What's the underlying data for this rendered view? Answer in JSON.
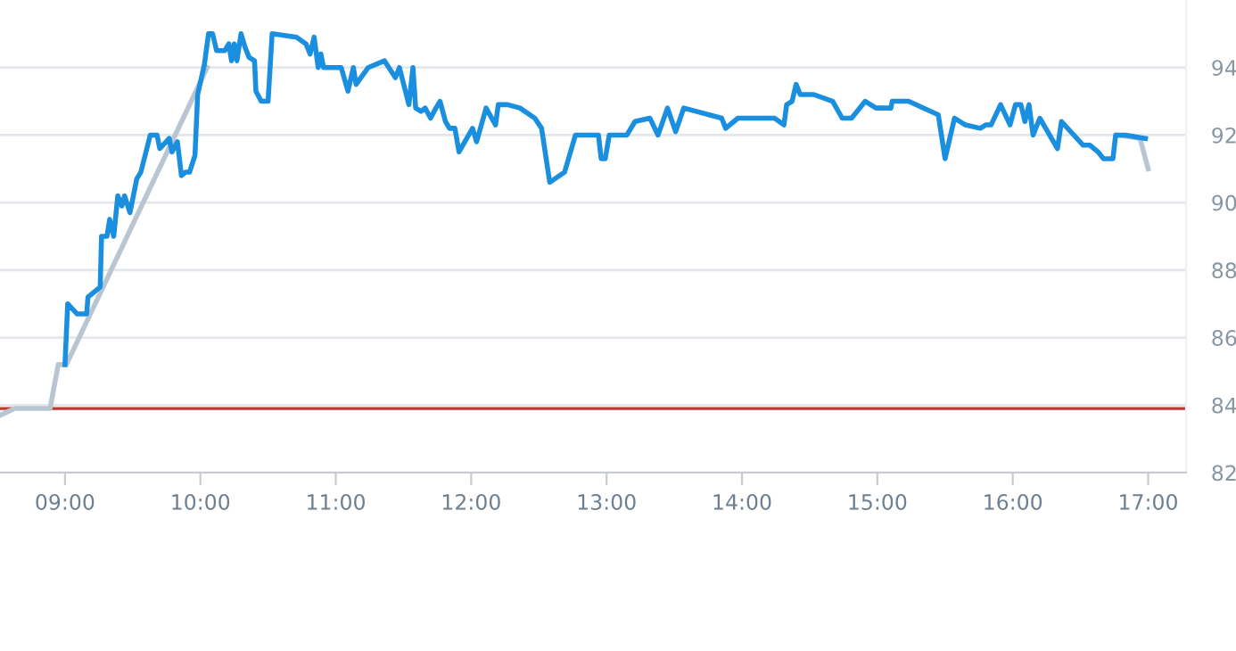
{
  "chart_data": {
    "type": "line",
    "series": [
      {
        "color": "#b9c6d2",
        "x": [
          8.52,
          8.63,
          8.89,
          8.95,
          9.01,
          10.05
        ],
        "values": [
          83.7,
          83.9,
          83.9,
          85.2,
          85.2,
          94.0
        ]
      },
      {
        "color": "#b9c6d2",
        "x": [
          16.77,
          16.94,
          17.0
        ],
        "values": [
          92.0,
          91.9,
          91.0
        ]
      },
      {
        "color": "#1a8fe0",
        "x": [
          9.0,
          9.02,
          9.09,
          9.16,
          9.17,
          9.26,
          9.27,
          9.31,
          9.33,
          9.36,
          9.39,
          9.42,
          9.44,
          9.48,
          9.53,
          9.56,
          9.63,
          9.68,
          9.7,
          9.77,
          9.79,
          9.83,
          9.86,
          9.89,
          9.92,
          9.96,
          9.98,
          10.03,
          10.06,
          10.09,
          10.12,
          10.18,
          10.21,
          10.23,
          10.25,
          10.27,
          10.3,
          10.33,
          10.36,
          10.4,
          10.41,
          10.45,
          10.5,
          10.53,
          10.71,
          10.78,
          10.81,
          10.84,
          10.87,
          10.89,
          10.91,
          11.04,
          11.09,
          11.13,
          11.15,
          11.24,
          11.36,
          11.44,
          11.47,
          11.54,
          11.57,
          11.59,
          11.63,
          11.66,
          11.7,
          11.74,
          11.77,
          11.81,
          11.84,
          11.88,
          11.91,
          12.01,
          12.04,
          12.11,
          12.18,
          12.2,
          12.27,
          12.36,
          12.47,
          12.52,
          12.58,
          12.69,
          12.77,
          12.94,
          12.96,
          12.99,
          13.02,
          13.15,
          13.21,
          13.32,
          13.38,
          13.45,
          13.51,
          13.57,
          13.85,
          13.88,
          13.97,
          14.24,
          14.31,
          14.33,
          14.37,
          14.4,
          14.43,
          14.53,
          14.67,
          14.74,
          14.81,
          14.91,
          14.99,
          15.1,
          15.11,
          15.23,
          15.45,
          15.5,
          15.57,
          15.65,
          15.76,
          15.8,
          15.84,
          15.91,
          15.98,
          16.02,
          16.06,
          16.09,
          16.12,
          16.15,
          16.2,
          16.33,
          16.36,
          16.52,
          16.57,
          16.63,
          16.67,
          16.74,
          16.76,
          16.83,
          16.98
        ],
        "values": [
          85.2,
          87.0,
          86.7,
          86.7,
          87.2,
          87.5,
          89.0,
          89.0,
          89.5,
          89.0,
          90.2,
          89.9,
          90.2,
          89.7,
          90.7,
          90.9,
          92.0,
          92.0,
          91.6,
          91.9,
          91.5,
          91.8,
          90.8,
          90.9,
          90.9,
          91.4,
          93.2,
          94.1,
          95.0,
          95.0,
          94.5,
          94.5,
          94.7,
          94.2,
          94.7,
          94.2,
          95.0,
          94.6,
          94.3,
          94.2,
          93.3,
          93.0,
          93.0,
          95.0,
          94.9,
          94.7,
          94.4,
          94.9,
          94.0,
          94.4,
          94.0,
          94.0,
          93.3,
          94.0,
          93.5,
          94.0,
          94.2,
          93.7,
          94.0,
          92.9,
          94.0,
          92.8,
          92.7,
          92.8,
          92.5,
          92.8,
          93.0,
          92.4,
          92.2,
          92.2,
          91.5,
          92.2,
          91.8,
          92.8,
          92.3,
          92.9,
          92.9,
          92.8,
          92.5,
          92.2,
          90.6,
          90.9,
          92.0,
          92.0,
          91.3,
          91.3,
          92.0,
          92.0,
          92.4,
          92.5,
          92.0,
          92.8,
          92.1,
          92.8,
          92.5,
          92.2,
          92.5,
          92.5,
          92.3,
          92.9,
          93.0,
          93.5,
          93.2,
          93.2,
          93.0,
          92.5,
          92.5,
          93.0,
          92.8,
          92.8,
          93.0,
          93.0,
          92.6,
          91.3,
          92.5,
          92.3,
          92.2,
          92.3,
          92.3,
          92.9,
          92.3,
          92.9,
          92.9,
          92.4,
          92.9,
          92.0,
          92.5,
          91.6,
          92.4,
          91.7,
          91.7,
          91.5,
          91.3,
          91.3,
          92.0,
          92.0,
          91.9
        ]
      }
    ],
    "xlim": [
      8.52,
      17.28
    ],
    "xticks": [
      {
        "value": 9,
        "label": "09:00"
      },
      {
        "value": 10,
        "label": "10:00"
      },
      {
        "value": 11,
        "label": "11:00"
      },
      {
        "value": 12,
        "label": "12:00"
      },
      {
        "value": 13,
        "label": "13:00"
      },
      {
        "value": 14,
        "label": "14:00"
      },
      {
        "value": 15,
        "label": "15:00"
      },
      {
        "value": 16,
        "label": "16:00"
      },
      {
        "value": 17,
        "label": "17:00"
      }
    ],
    "ylim": [
      82,
      96
    ],
    "yticks": [
      82,
      84,
      86,
      88,
      90,
      92,
      94
    ],
    "ref_lines": [
      {
        "axis": "y",
        "value": 83.9,
        "color": "#c0392b"
      }
    ],
    "grid": "y",
    "legend": false,
    "marker": "none",
    "line_style": "solid"
  }
}
